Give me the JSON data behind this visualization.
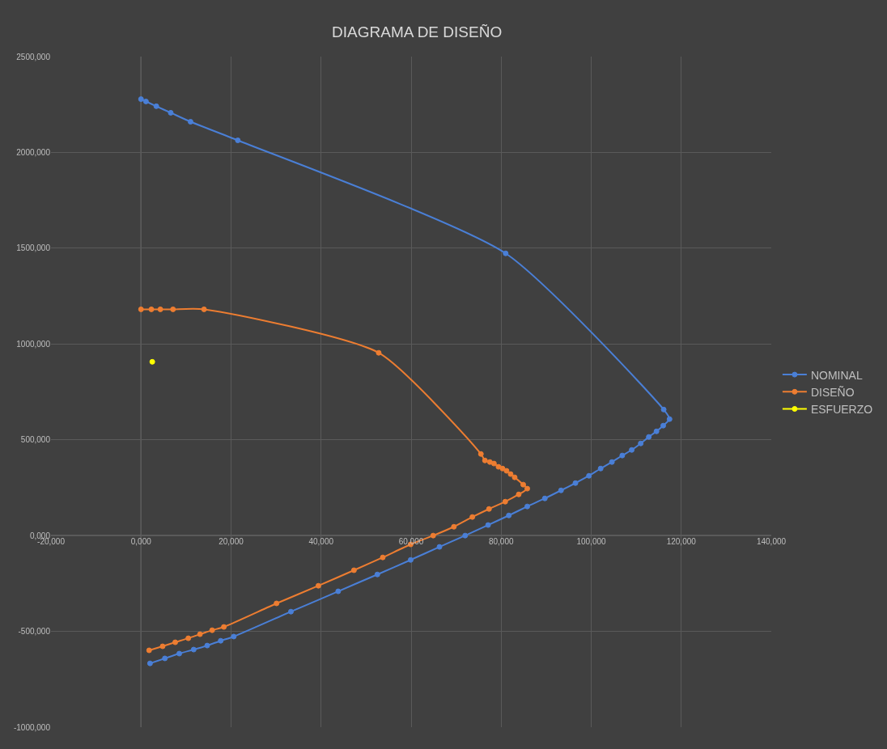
{
  "chart_data": {
    "type": "line",
    "title": "DIAGRAMA DE DISEÑO",
    "series": [
      {
        "name": "NOMINAL",
        "color": "#4a7fd6",
        "x": [
          0,
          1.1,
          3.4,
          6.6,
          11.0,
          21.5,
          81.0,
          116.1,
          117.4,
          116.0,
          114.5,
          112.8,
          111.0,
          109.0,
          106.9,
          104.6,
          102.1,
          99.5,
          96.5,
          93.3,
          89.7,
          85.8,
          81.7,
          77.1,
          72.0,
          66.3,
          59.9,
          52.5,
          43.8,
          33.3,
          20.6,
          17.7,
          14.7,
          11.7,
          8.5,
          5.3,
          2.0
        ],
        "values": [
          2278,
          2266,
          2241,
          2207,
          2160,
          2063,
          1473,
          658,
          608,
          574,
          544,
          515,
          481,
          447,
          418,
          384,
          350,
          312,
          274,
          236,
          194,
          152,
          105,
          55,
          0,
          -59,
          -127,
          -203,
          -291,
          -397,
          -527,
          -549,
          -574,
          -595,
          -616,
          -641,
          -667
        ]
      },
      {
        "name": "DISEÑO",
        "color": "#ed7d31",
        "x": [
          0,
          2.3,
          4.3,
          7.1,
          14.0,
          52.8,
          75.5,
          76.4,
          77.5,
          78.4,
          79.4,
          80.3,
          81.2,
          82.1,
          83.0,
          84.9,
          85.8,
          83.9,
          80.9,
          77.3,
          73.6,
          69.5,
          64.9,
          59.9,
          53.7,
          47.3,
          39.4,
          30.1,
          18.4,
          15.8,
          13.1,
          10.5,
          7.6,
          4.8,
          1.8
        ],
        "values": [
          1181,
          1181,
          1181,
          1181,
          1181,
          954,
          426,
          392,
          384,
          376,
          359,
          350,
          338,
          321,
          304,
          266,
          245,
          215,
          177,
          139,
          97,
          46,
          0,
          -46,
          -114,
          -181,
          -262,
          -354,
          -477,
          -494,
          -515,
          -536,
          -557,
          -578,
          -599
        ]
      },
      {
        "name": "ESFUERZO",
        "color": "#ffff00",
        "x": [
          2.5
        ],
        "values": [
          907
        ]
      }
    ],
    "xlim": [
      -20,
      140
    ],
    "xticks": [
      {
        "value": -20,
        "label": "-20,000"
      },
      {
        "value": 0,
        "label": "0,000"
      },
      {
        "value": 20,
        "label": "20,000"
      },
      {
        "value": 40,
        "label": "40,000"
      },
      {
        "value": 60,
        "label": "60,000"
      },
      {
        "value": 80,
        "label": "80,000"
      },
      {
        "value": 100,
        "label": "100,000"
      },
      {
        "value": 120,
        "label": "120,000"
      },
      {
        "value": 140,
        "label": "140,000"
      }
    ],
    "ylim": [
      -1000,
      2500
    ],
    "yticks": [
      {
        "value": -1000,
        "label": "-1000,000"
      },
      {
        "value": -500,
        "label": "-500,000"
      },
      {
        "value": 0,
        "label": "0,000"
      },
      {
        "value": 500,
        "label": "500,000"
      },
      {
        "value": 1000,
        "label": "1000,000"
      },
      {
        "value": 1500,
        "label": "1500,000"
      },
      {
        "value": 2000,
        "label": "2000,000"
      },
      {
        "value": 2500,
        "label": "2500,000"
      }
    ],
    "grid": true,
    "legend": "right",
    "marker": "circle",
    "line_style": "solid"
  }
}
